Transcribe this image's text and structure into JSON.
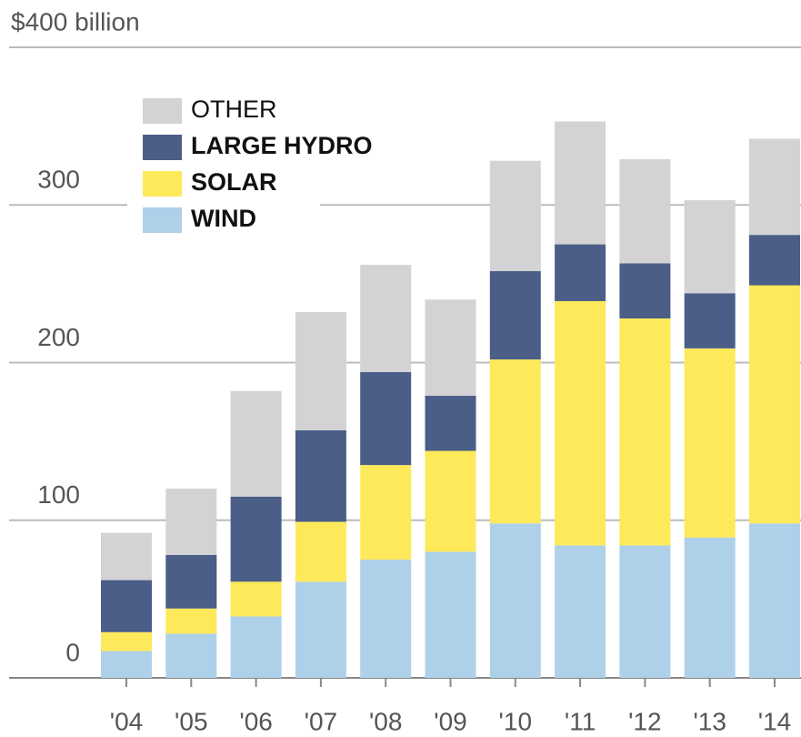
{
  "chart_data": {
    "type": "stacked-bar",
    "categories": [
      "'04",
      "'05",
      "'06",
      "'07",
      "'08",
      "'09",
      "'10",
      "'11",
      "'12",
      "'13",
      "'14"
    ],
    "series": [
      {
        "name": "WIND",
        "color": "#afd0e9",
        "values": [
          17,
          28,
          39,
          61,
          75,
          80,
          98,
          84,
          84,
          89,
          98
        ]
      },
      {
        "name": "SOLAR",
        "color": "#fde95a",
        "values": [
          12,
          16,
          22,
          38,
          60,
          64,
          104,
          155,
          144,
          120,
          151
        ]
      },
      {
        "name": "LARGE HYDRO",
        "color": "#4a5e87",
        "values": [
          33,
          34,
          54,
          58,
          59,
          35,
          56,
          36,
          35,
          35,
          32
        ]
      },
      {
        "name": "OTHER",
        "color": "#d3d2d4",
        "values": [
          30,
          42,
          67,
          75,
          68,
          61,
          70,
          78,
          66,
          59,
          61
        ]
      }
    ],
    "ylim": [
      0,
      400
    ],
    "yticks": [
      0,
      100,
      200,
      300,
      {
        "value": 400,
        "label": "$400 billion"
      }
    ],
    "grid": true,
    "legend": "top-left"
  }
}
